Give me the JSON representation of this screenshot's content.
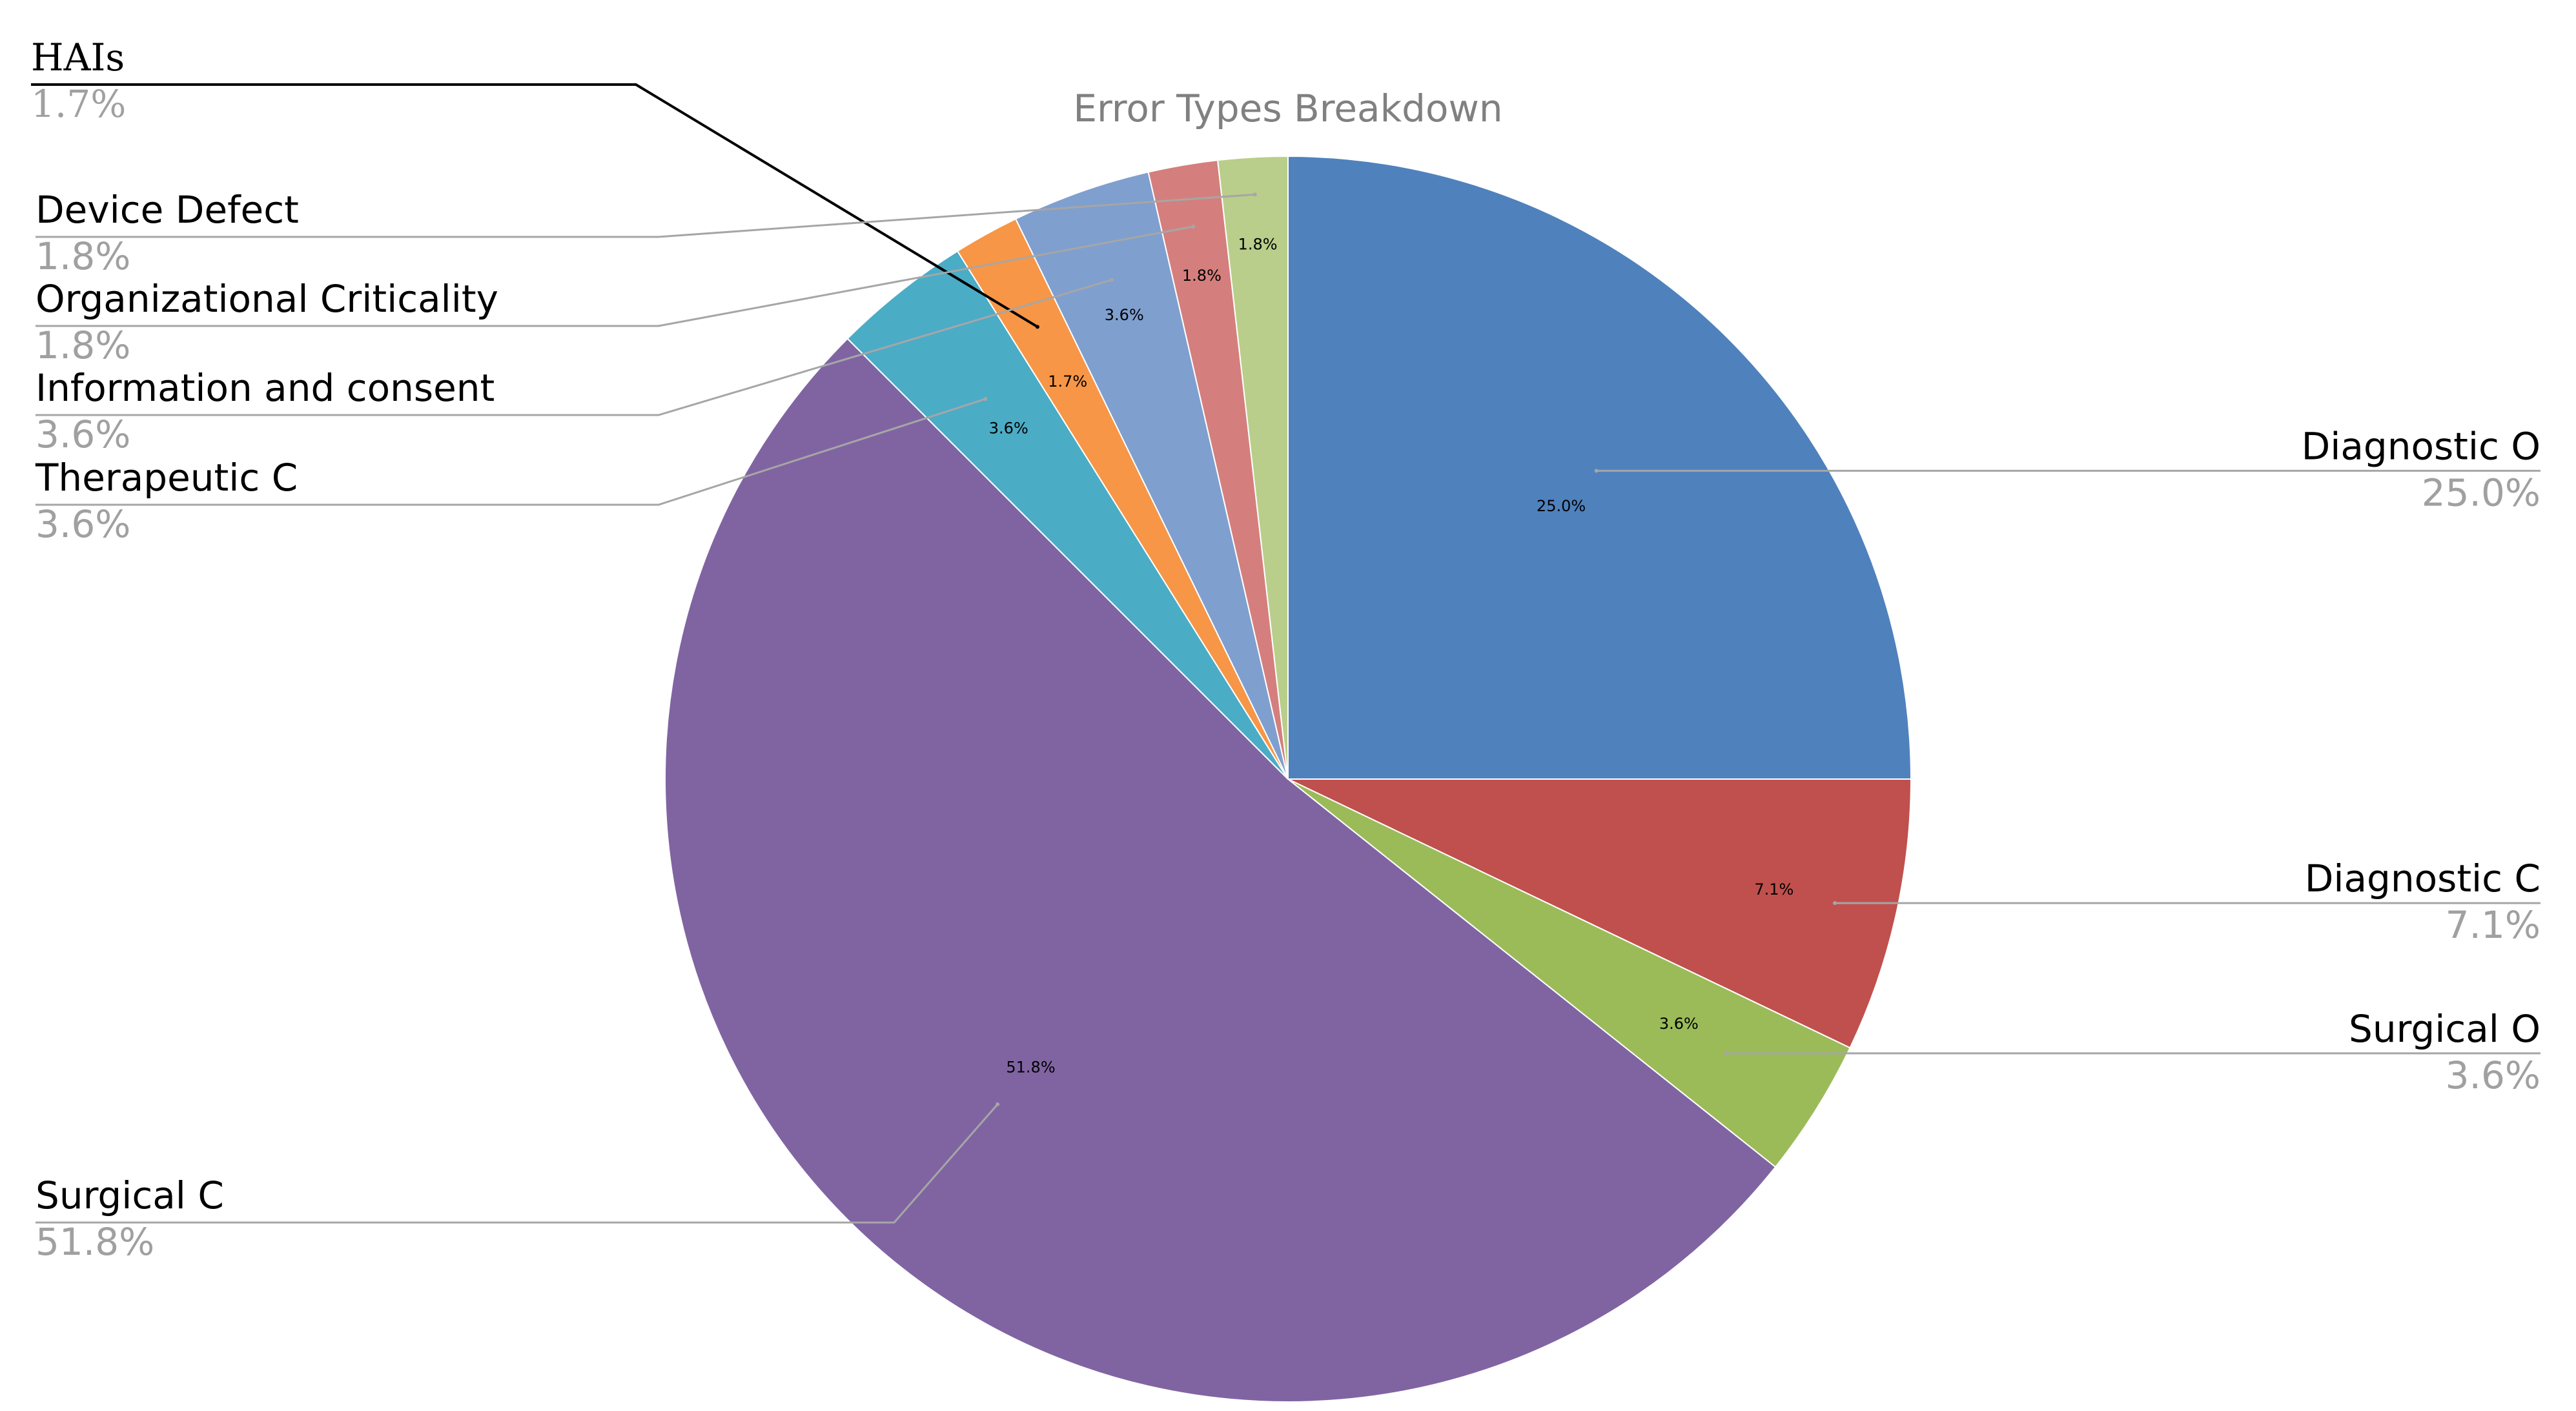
{
  "chart_data": {
    "type": "pie",
    "title": "Error Types Breakdown",
    "slices": [
      {
        "name": "Diagnostic O",
        "value": 25.0,
        "label": "25.0%",
        "color": "#4F81BD"
      },
      {
        "name": "Diagnostic C",
        "value": 7.1,
        "label": "7.1%",
        "color": "#C0504D"
      },
      {
        "name": "Surgical O",
        "value": 3.6,
        "label": "3.6%",
        "color": "#9BBB59"
      },
      {
        "name": "Surgical C",
        "value": 51.8,
        "label": "51.8%",
        "color": "#8064A2"
      },
      {
        "name": "Therapeutic C",
        "value": 3.6,
        "label": "3.6%",
        "color": "#4BACC6"
      },
      {
        "name": "HAIs",
        "value": 1.7,
        "label": "1.7%",
        "color": "#F79646"
      },
      {
        "name": "Information and consent",
        "value": 3.6,
        "label": "3.6%",
        "color": "#7F9FCF"
      },
      {
        "name": "Organizational Criticality",
        "value": 1.8,
        "label": "1.8%",
        "color": "#D47F7D"
      },
      {
        "name": "Device Defect",
        "value": 1.8,
        "label": "1.8%",
        "color": "#B9CE8A"
      }
    ]
  }
}
